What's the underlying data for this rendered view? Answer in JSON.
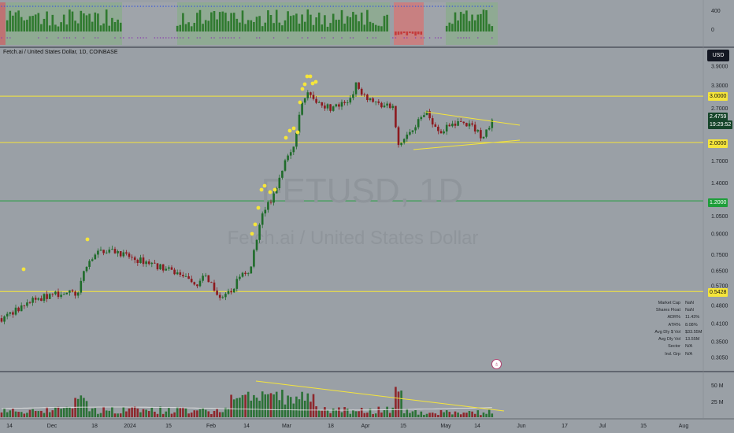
{
  "header": {
    "pair_title": "Fetch.ai / United States Dollar, 1D, COINBASE",
    "currency_button": "USD",
    "watermark_symbol": "FETUSD, 1D",
    "watermark_name": "Fetch.ai / United States Dollar"
  },
  "price_tags": {
    "upper_res": "3.0000",
    "mid_res": "2.0000",
    "green_support": "1.2000",
    "low_support": "0.5428",
    "current_price": "2.4759",
    "countdown": "19:29:52"
  },
  "stats_table": [
    {
      "label": "Market Cap",
      "value": "NaN"
    },
    {
      "label": "Shares Float",
      "value": "NaN"
    },
    {
      "label": "ADR%",
      "value": "11.43%"
    },
    {
      "label": "ATR%",
      "value": "8.08%"
    },
    {
      "label": "Avg Dly $ Vol",
      "value": "$33.55M"
    },
    {
      "label": "Avg Dly Vol",
      "value": "13.55M"
    },
    {
      "label": "Sector",
      "value": "N/A"
    },
    {
      "label": "Ind. Grp",
      "value": "N/A"
    }
  ],
  "chart_data": {
    "type": "candlestick",
    "price_axis_ticks": [
      "3.9000",
      "3.3000",
      "2.7000",
      "1.7000",
      "1.4000",
      "1.0500",
      "0.9000",
      "0.7500",
      "0.6500",
      "0.5700",
      "0.4800",
      "0.4100",
      "0.3500",
      "0.3050"
    ],
    "price_axis_values": [
      3.9,
      3.3,
      2.7,
      1.7,
      1.4,
      1.05,
      0.9,
      0.75,
      0.65,
      0.57,
      0.48,
      0.41,
      0.35,
      0.305
    ],
    "y_scale": "log",
    "horizontal_levels": [
      {
        "value": 3.0,
        "color": "#f5e53b"
      },
      {
        "value": 2.0,
        "color": "#f5e53b"
      },
      {
        "value": 1.2,
        "color": "#1e9e3a"
      },
      {
        "value": 0.5428,
        "color": "#f5e53b"
      }
    ],
    "time_axis_labels": [
      "14",
      "Dec",
      "18",
      "2024",
      "15",
      "Feb",
      "14",
      "Mar",
      "18",
      "Apr",
      "15",
      "May",
      "14",
      "Jun",
      "17",
      "Jul",
      "15",
      "Aug"
    ],
    "indicator_axis_labels": [
      "400",
      "0"
    ],
    "volume_axis_labels": [
      "50 M",
      "25 M"
    ],
    "candle_colors": {
      "up": "#1f6b2a",
      "down": "#8c1a1f"
    }
  }
}
